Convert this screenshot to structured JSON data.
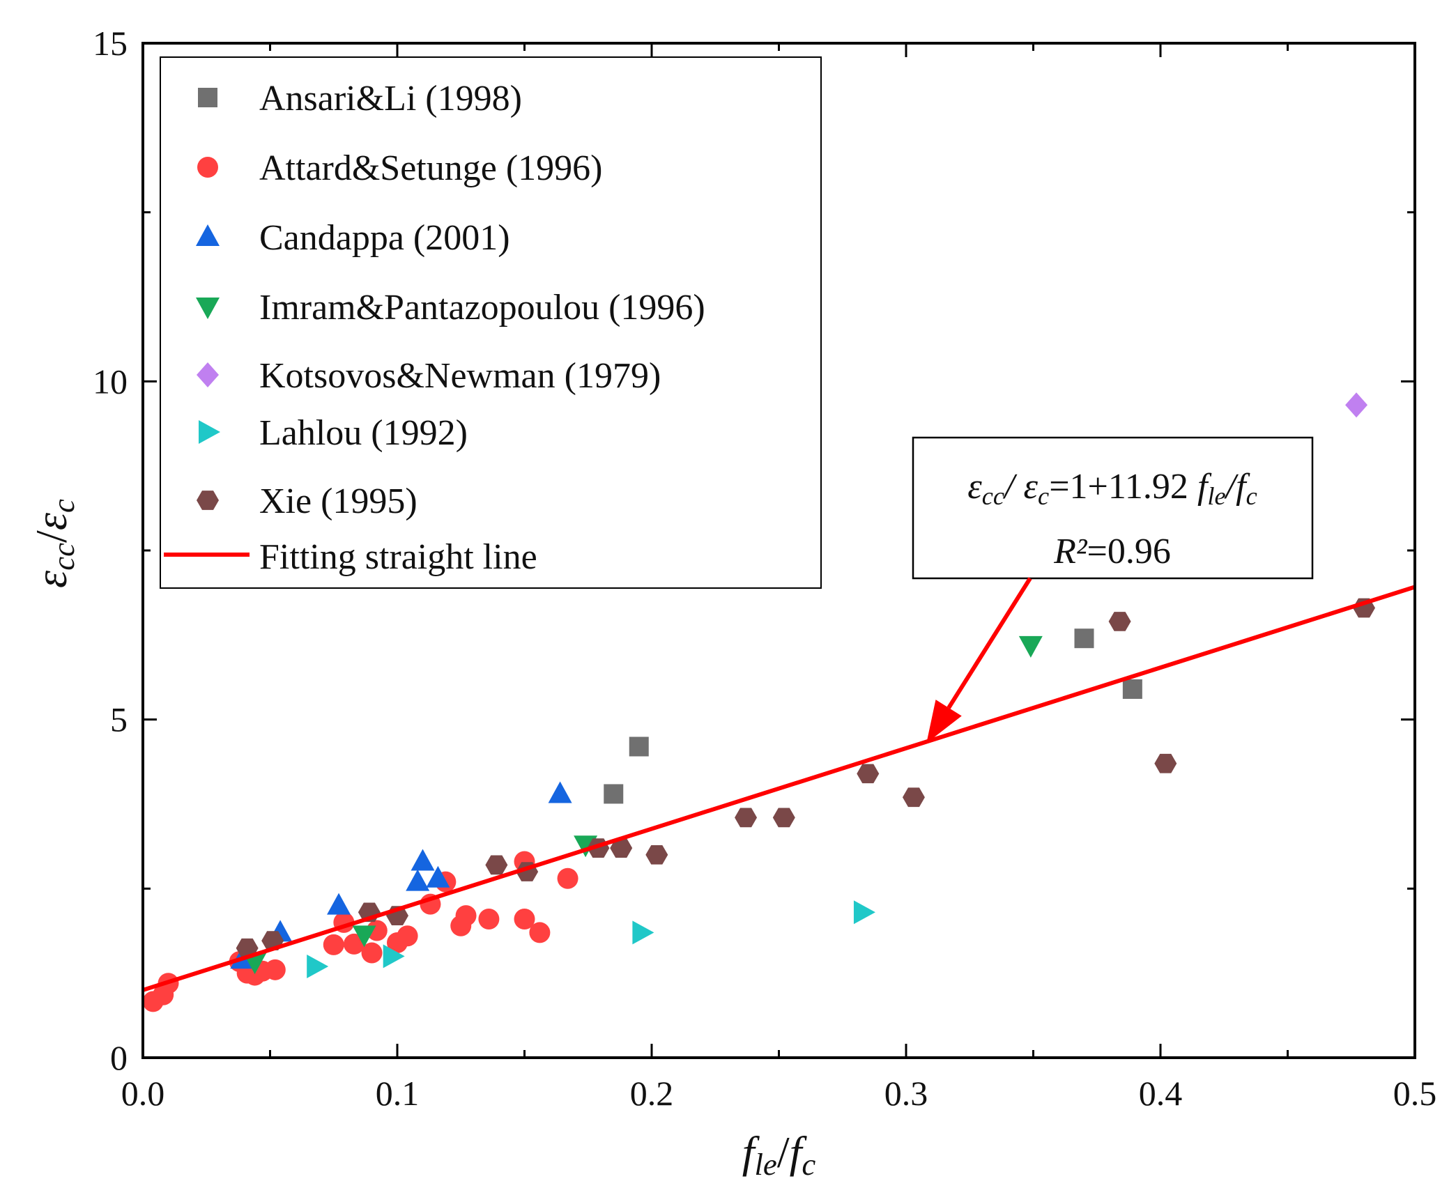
{
  "chart_data": {
    "type": "scatter",
    "xlabel": "f_le/f_c",
    "ylabel": "ε_cc/ε_c",
    "xlim": [
      0,
      0.5
    ],
    "ylim": [
      0,
      15
    ],
    "x_ticks": [
      "0.0",
      "0.1",
      "0.2",
      "0.3",
      "0.4",
      "0.5"
    ],
    "y_ticks": [
      "0",
      "5",
      "10",
      "15"
    ],
    "legend_position": "top-left",
    "series": [
      {
        "name": "Ansari&Li (1998)",
        "marker": "square",
        "color": "#707070",
        "points": [
          [
            0.185,
            3.9
          ],
          [
            0.195,
            4.6
          ],
          [
            0.37,
            6.2
          ],
          [
            0.389,
            5.45
          ]
        ]
      },
      {
        "name": "Attard&Setunge (1996)",
        "marker": "circle",
        "color": "#ff4040",
        "points": [
          [
            0.004,
            0.83
          ],
          [
            0.008,
            0.93
          ],
          [
            0.01,
            1.1
          ],
          [
            0.038,
            1.42
          ],
          [
            0.041,
            1.25
          ],
          [
            0.044,
            1.22
          ],
          [
            0.047,
            1.28
          ],
          [
            0.052,
            1.3
          ],
          [
            0.075,
            1.67
          ],
          [
            0.079,
            2.0
          ],
          [
            0.083,
            1.68
          ],
          [
            0.09,
            1.55
          ],
          [
            0.092,
            1.88
          ],
          [
            0.1,
            1.7
          ],
          [
            0.104,
            1.8
          ],
          [
            0.113,
            2.27
          ],
          [
            0.119,
            2.6
          ],
          [
            0.125,
            1.95
          ],
          [
            0.127,
            2.1
          ],
          [
            0.136,
            2.05
          ],
          [
            0.15,
            2.05
          ],
          [
            0.15,
            2.9
          ],
          [
            0.156,
            1.85
          ],
          [
            0.167,
            2.65
          ]
        ]
      },
      {
        "name": "Candappa (2001)",
        "marker": "triangle-up",
        "color": "#1565e0",
        "points": [
          [
            0.039,
            1.45
          ],
          [
            0.054,
            1.85
          ],
          [
            0.077,
            2.25
          ],
          [
            0.108,
            2.6
          ],
          [
            0.11,
            2.9
          ],
          [
            0.116,
            2.65
          ],
          [
            0.164,
            3.9
          ]
        ]
      },
      {
        "name": "Imram&Pantazopoulou (1996)",
        "marker": "triangle-down",
        "color": "#19a857",
        "points": [
          [
            0.044,
            1.42
          ],
          [
            0.087,
            1.82
          ],
          [
            0.174,
            3.15
          ],
          [
            0.349,
            6.1
          ]
        ]
      },
      {
        "name": "Kotsovos&Newman (1979)",
        "marker": "diamond",
        "color": "#c080f0",
        "points": [
          [
            0.477,
            9.65
          ]
        ]
      },
      {
        "name": "Lahlou (1992)",
        "marker": "triangle-right",
        "color": "#20c8c8",
        "points": [
          [
            0.068,
            1.35
          ],
          [
            0.098,
            1.5
          ],
          [
            0.196,
            1.85
          ],
          [
            0.283,
            2.15
          ]
        ]
      },
      {
        "name": "Xie (1995)",
        "marker": "hexagon",
        "color": "#7a4848",
        "points": [
          [
            0.041,
            1.62
          ],
          [
            0.051,
            1.73
          ],
          [
            0.089,
            2.15
          ],
          [
            0.1,
            2.1
          ],
          [
            0.139,
            2.85
          ],
          [
            0.151,
            2.75
          ],
          [
            0.179,
            3.1
          ],
          [
            0.188,
            3.1
          ],
          [
            0.202,
            3.0
          ],
          [
            0.237,
            3.55
          ],
          [
            0.252,
            3.55
          ],
          [
            0.285,
            4.2
          ],
          [
            0.303,
            3.85
          ],
          [
            0.384,
            6.45
          ],
          [
            0.402,
            4.35
          ],
          [
            0.48,
            6.65
          ]
        ]
      }
    ],
    "fit_line": {
      "name": "Fitting straight line",
      "color": "#ff0000",
      "intercept": 1,
      "slope": 11.92
    },
    "annotation": {
      "equation": "ε_cc/ε_c=1+11.92 f_le/f_c",
      "r_squared": "R²=0.96",
      "arrow_target": [
        0.308,
        4.65
      ]
    }
  }
}
